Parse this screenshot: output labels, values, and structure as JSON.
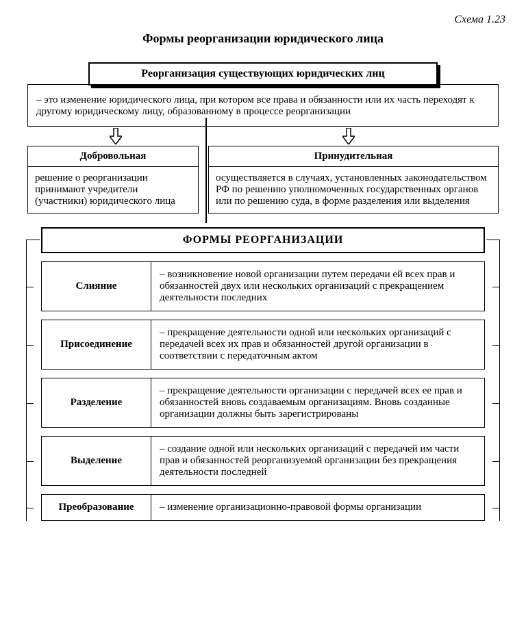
{
  "scheme_label": "Схема 1.23",
  "title": "Формы реорганизации юридического лица",
  "main_header": "Реорганизация существующих юридических лиц",
  "definition": "– это изменение юридического лица, при котором все права и обязанности или их часть переходят к другому юридическому лицу, образованному в процессе реорганизации",
  "types": {
    "voluntary": {
      "title": "Добровольная",
      "text": "решение о реорганизации принимают учредители (участники) юридического лица"
    },
    "compulsory": {
      "title": "Принудительная",
      "text": "осуществляется в случаях, установленных законодательством РФ по решению уполномоченных государственных органов или по решению суда, в форме разделения или выделения"
    }
  },
  "forms_header": "ФОРМЫ  РЕОРГАНИЗАЦИИ",
  "forms": [
    {
      "name": "Слияние",
      "desc": "– возникновение новой организации путем передачи ей всех прав и обязанностей двух или нескольких организаций с прекращением деятельности последних"
    },
    {
      "name": "Присоединение",
      "desc": "– прекращение деятельности одной или нескольких организаций с передачей всех их прав и обязанностей другой организации в соответствии с передаточным актом"
    },
    {
      "name": "Разделение",
      "desc": "– прекращение деятельности организации с передачей всех ее прав и обязанностей вновь создаваемым организациям. Вновь созданные организации должны быть зарегистрированы"
    },
    {
      "name": "Выделение",
      "desc": "– создание одной или нескольких организаций с передачей им части прав и обязанностей реорганизуемой организации без прекращения деятельности последней"
    },
    {
      "name": "Преобразование",
      "desc": "– изменение организационно-правовой формы организации"
    }
  ],
  "colors": {
    "border": "#000000",
    "bg": "#ffffff"
  }
}
